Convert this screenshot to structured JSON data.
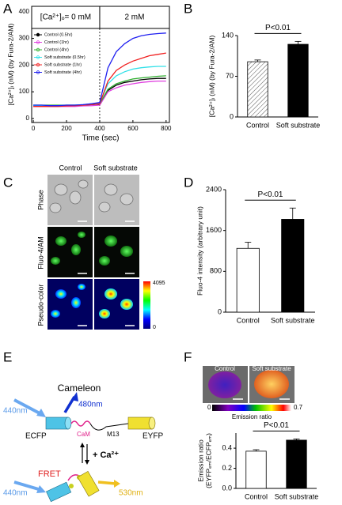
{
  "panel_labels": [
    "A",
    "B",
    "C",
    "D",
    "E",
    "F"
  ],
  "chart_data": [
    {
      "type": "line",
      "header": [
        "[Ca²⁺]ₒ= 0 mM",
        "2 mM"
      ],
      "xlabel": "Time (sec)",
      "ylabel": "[Ca²⁺]ᵢ (nM) (by Fura-2/AM)",
      "x": [
        0,
        50,
        100,
        150,
        200,
        250,
        300,
        350,
        400,
        450,
        500,
        550,
        600,
        650,
        700,
        750,
        800
      ],
      "xlim": [
        -10,
        820
      ],
      "xticks": [
        0,
        200,
        400,
        600,
        800
      ],
      "ylim": [
        -15,
        420
      ],
      "yticks": [
        0,
        100,
        200,
        300,
        400
      ],
      "vlines": [
        400
      ],
      "series": [
        {
          "name": "Control (0.5hr)",
          "color": "#000000",
          "values": [
            48,
            48,
            48,
            48,
            48,
            48,
            50,
            52,
            54,
            105,
            125,
            135,
            140,
            145,
            148,
            150,
            150
          ]
        },
        {
          "name": "Control (1hr)",
          "color": "#e040e0",
          "values": [
            45,
            45,
            45,
            45,
            45,
            45,
            47,
            48,
            50,
            100,
            115,
            125,
            130,
            135,
            138,
            140,
            140
          ]
        },
        {
          "name": "Control (4hr)",
          "color": "#30b030",
          "values": [
            50,
            50,
            50,
            50,
            50,
            50,
            50,
            52,
            55,
            110,
            130,
            140,
            148,
            152,
            155,
            158,
            160
          ]
        },
        {
          "name": "Soft substrate (0.5hr)",
          "color": "#30e0e8",
          "values": [
            48,
            48,
            48,
            48,
            50,
            50,
            52,
            55,
            58,
            130,
            160,
            175,
            185,
            190,
            193,
            195,
            195
          ]
        },
        {
          "name": "Soft substrate (1hr)",
          "color": "#f02020",
          "values": [
            45,
            45,
            45,
            45,
            47,
            48,
            50,
            52,
            55,
            140,
            180,
            200,
            215,
            225,
            235,
            240,
            245
          ]
        },
        {
          "name": "Soft substrate (4hr)",
          "color": "#2020f0",
          "values": [
            50,
            50,
            48,
            48,
            50,
            50,
            52,
            55,
            60,
            190,
            250,
            280,
            300,
            310,
            315,
            318,
            320
          ]
        }
      ]
    },
    {
      "type": "bar",
      "categories": [
        "Control",
        "Soft substrate"
      ],
      "values": [
        95,
        125
      ],
      "errors": [
        3,
        5
      ],
      "colors": [
        "#ffffff",
        "#000000"
      ],
      "hatch": [
        true,
        false
      ],
      "ylim": [
        0,
        140
      ],
      "yticks": [
        0,
        70,
        140
      ],
      "ylabel": [
        "[Ca²⁺]ᵢ (nM) (by Fura-2/AM)"
      ],
      "annotation": "P<0.01"
    },
    {
      "type": "bar",
      "categories": [
        "Control",
        "Soft substrate"
      ],
      "values": [
        1250,
        1820
      ],
      "errors": [
        120,
        220
      ],
      "colors": [
        "#ffffff",
        "#000000"
      ],
      "hatch": [
        false,
        false
      ],
      "ylim": [
        0,
        2400
      ],
      "yticks": [
        0,
        800,
        1600,
        2400
      ],
      "ylabel": [
        "Fluo-4 intensity (arbitrary unit)"
      ],
      "annotation": "P<0.01"
    },
    {
      "type": "bar",
      "categories": [
        "Control",
        "Soft substrate"
      ],
      "values": [
        0.37,
        0.48
      ],
      "errors": [
        0.015,
        0.012
      ],
      "colors": [
        "#ffffff",
        "#000000"
      ],
      "hatch": [
        false,
        false
      ],
      "ylim": [
        0,
        0.55
      ],
      "yticks": [
        {
          "value": 0,
          "label": "0.0"
        },
        0.2,
        0.4
      ],
      "ylabel": [
        "Emission ratio",
        "(EYFPₑₘ/ECFPₑₘ)"
      ],
      "annotation": "P<0.01"
    }
  ],
  "panel_c": {
    "columns": [
      "Control",
      "Soft substrate"
    ],
    "rows": [
      "Phase",
      "Fluo-4/AM",
      "Pseudo-color"
    ],
    "colorbar_max": 4095,
    "colorbar_min": 0
  },
  "panel_e": {
    "title": "Cameleon",
    "excitation": "440nm",
    "emission_ecfp": "480nm",
    "ecfp": "ECFP",
    "eyfp": "EYFP",
    "cam": "CaM",
    "m13": "M13",
    "calcium": "+ Ca²⁺",
    "fret": "FRET",
    "excitation_fret": "440nm",
    "emission_fret": "530nm"
  },
  "panel_f": {
    "columns": [
      "Control",
      "Soft substrate"
    ],
    "colorbar_min": 0,
    "colorbar_max": 0.7,
    "colorbar_label": "Emission ratio"
  }
}
